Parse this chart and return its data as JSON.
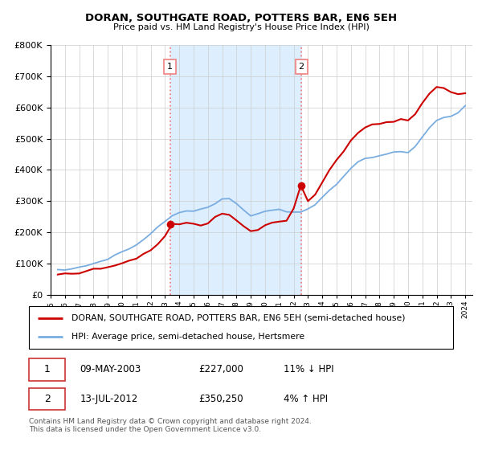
{
  "title": "DORAN, SOUTHGATE ROAD, POTTERS BAR, EN6 5EH",
  "subtitle": "Price paid vs. HM Land Registry's House Price Index (HPI)",
  "legend_line1": "DORAN, SOUTHGATE ROAD, POTTERS BAR, EN6 5EH (semi-detached house)",
  "legend_line2": "HPI: Average price, semi-detached house, Hertsmere",
  "transaction1_date": "09-MAY-2003",
  "transaction1_price": "£227,000",
  "transaction1_hpi": "11% ↓ HPI",
  "transaction2_date": "13-JUL-2012",
  "transaction2_price": "£350,250",
  "transaction2_hpi": "4% ↑ HPI",
  "footer": "Contains HM Land Registry data © Crown copyright and database right 2024.\nThis data is licensed under the Open Government Licence v3.0.",
  "vline1_x": 2003.35,
  "vline2_x": 2012.54,
  "marker1_y": 227000,
  "marker2_y": 350250,
  "red_color": "#cc0000",
  "blue_color": "#7aade0",
  "vline_color": "#f08080",
  "span_color": "#ddeeff",
  "ylim": [
    0,
    800000
  ],
  "xlim": [
    1995.0,
    2024.5
  ],
  "hpi_values": [
    78000,
    80000,
    83000,
    88000,
    94000,
    100000,
    107000,
    116000,
    126000,
    137000,
    148000,
    160000,
    176000,
    196000,
    218000,
    237000,
    252000,
    263000,
    268000,
    270000,
    272000,
    280000,
    292000,
    304000,
    308000,
    294000,
    272000,
    256000,
    258000,
    268000,
    272000,
    272000,
    268000,
    264000,
    268000,
    276000,
    290000,
    310000,
    332000,
    354000,
    378000,
    405000,
    425000,
    438000,
    442000,
    448000,
    450000,
    454000,
    458000,
    456000,
    472000,
    505000,
    535000,
    558000,
    568000,
    572000,
    585000,
    605000
  ],
  "prop_values": [
    65000,
    66000,
    68000,
    72000,
    76000,
    80000,
    84000,
    90000,
    96000,
    103000,
    110000,
    118000,
    128000,
    143000,
    162000,
    185000,
    210000,
    226000,
    230000,
    226000,
    222000,
    232000,
    248000,
    258000,
    255000,
    240000,
    220000,
    205000,
    208000,
    220000,
    228000,
    233000,
    236000,
    275000,
    285000,
    300000,
    322000,
    360000,
    395000,
    430000,
    460000,
    495000,
    520000,
    535000,
    545000,
    550000,
    552000,
    555000,
    560000,
    558000,
    575000,
    615000,
    645000,
    665000,
    660000,
    648000,
    645000,
    645000
  ],
  "years": [
    1995.5,
    1996.0,
    1996.5,
    1997.0,
    1997.5,
    1998.0,
    1998.5,
    1999.0,
    1999.5,
    2000.0,
    2000.5,
    2001.0,
    2001.5,
    2002.0,
    2002.5,
    2003.0,
    2003.5,
    2004.0,
    2004.5,
    2005.0,
    2005.5,
    2006.0,
    2006.5,
    2007.0,
    2007.5,
    2008.0,
    2008.5,
    2009.0,
    2009.5,
    2010.0,
    2010.5,
    2011.0,
    2011.5,
    2012.0,
    2012.5,
    2013.0,
    2013.5,
    2014.0,
    2014.5,
    2015.0,
    2015.5,
    2016.0,
    2016.5,
    2017.0,
    2017.5,
    2018.0,
    2018.5,
    2019.0,
    2019.5,
    2020.0,
    2020.5,
    2021.0,
    2021.5,
    2022.0,
    2022.5,
    2023.0,
    2023.5,
    2024.0
  ]
}
